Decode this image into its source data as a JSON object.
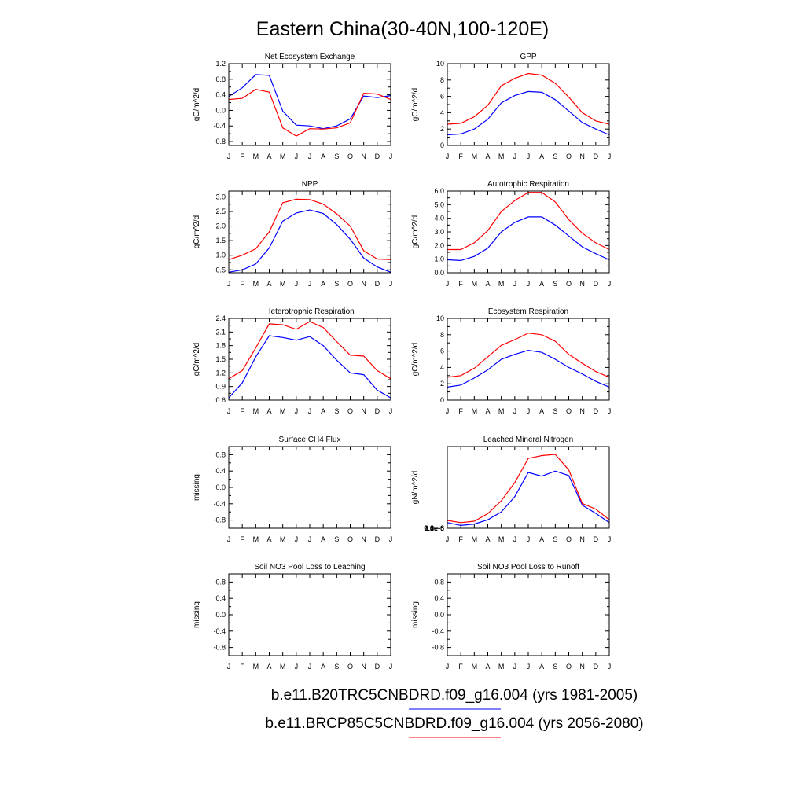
{
  "figure_title": "Eastern China(30-40N,100-120E)",
  "colors": {
    "series1": "#0000ff",
    "series2": "#ff0000",
    "axis": "#000000"
  },
  "chart_data": [
    {
      "type": "line",
      "title": "Net Ecosystem Exchange",
      "ylabel": "gC/m^2/d",
      "x": [
        "J",
        "F",
        "M",
        "A",
        "M",
        "J",
        "J",
        "A",
        "S",
        "O",
        "N",
        "D",
        "J"
      ],
      "yticks": [
        "1.2",
        "0.8",
        "0.4",
        "0.0",
        "-0.4",
        "-0.8"
      ],
      "ylim": [
        -0.9,
        1.2
      ],
      "series": [
        {
          "values": [
            0.36,
            0.58,
            0.92,
            0.9,
            -0.02,
            -0.38,
            -0.4,
            -0.47,
            -0.4,
            -0.22,
            0.37,
            0.33,
            0.38
          ]
        },
        {
          "values": [
            0.28,
            0.31,
            0.54,
            0.47,
            -0.45,
            -0.66,
            -0.47,
            -0.48,
            -0.45,
            -0.32,
            0.44,
            0.42,
            0.28
          ]
        }
      ]
    },
    {
      "type": "line",
      "title": "GPP",
      "ylabel": "gC/m^2/d",
      "x": [
        "J",
        "F",
        "M",
        "A",
        "M",
        "J",
        "J",
        "A",
        "S",
        "O",
        "N",
        "D",
        "J"
      ],
      "yticks": [
        "10",
        "8",
        "6",
        "4",
        "2",
        "0"
      ],
      "ylim": [
        0,
        10
      ],
      "series": [
        {
          "values": [
            1.3,
            1.4,
            2.0,
            3.2,
            5.2,
            6.1,
            6.6,
            6.5,
            5.6,
            4.2,
            2.8,
            2.0,
            1.3
          ]
        },
        {
          "values": [
            2.6,
            2.7,
            3.5,
            4.9,
            7.3,
            8.2,
            8.8,
            8.6,
            7.6,
            5.9,
            4.0,
            3.0,
            2.6
          ]
        }
      ]
    },
    {
      "type": "line",
      "title": "NPP",
      "ylabel": "gC/m^2/d",
      "x": [
        "J",
        "F",
        "M",
        "A",
        "M",
        "J",
        "J",
        "A",
        "S",
        "O",
        "N",
        "D",
        "J"
      ],
      "yticks": [
        "3.0",
        "2.5",
        "2.0",
        "1.5",
        "1.0",
        "0.5"
      ],
      "ylim": [
        0.4,
        3.2
      ],
      "series": [
        {
          "values": [
            0.42,
            0.5,
            0.7,
            1.25,
            2.17,
            2.45,
            2.55,
            2.43,
            2.05,
            1.55,
            0.9,
            0.6,
            0.42
          ]
        },
        {
          "values": [
            0.85,
            1.0,
            1.22,
            1.8,
            2.8,
            2.92,
            2.91,
            2.75,
            2.42,
            2.0,
            1.15,
            0.87,
            0.85
          ]
        }
      ]
    },
    {
      "type": "line",
      "title": "Autotrophic Respiration",
      "ylabel": "gC/m^2/d",
      "x": [
        "J",
        "F",
        "M",
        "A",
        "M",
        "J",
        "J",
        "A",
        "S",
        "O",
        "N",
        "D",
        "J"
      ],
      "yticks": [
        "6.0",
        "5.0",
        "4.0",
        "3.0",
        "2.0",
        "1.0",
        "0.0"
      ],
      "ylim": [
        0,
        6.0
      ],
      "series": [
        {
          "values": [
            0.95,
            0.9,
            1.2,
            1.8,
            3.0,
            3.7,
            4.1,
            4.1,
            3.5,
            2.7,
            1.9,
            1.4,
            0.95
          ]
        },
        {
          "values": [
            1.7,
            1.7,
            2.2,
            3.1,
            4.5,
            5.3,
            5.9,
            5.9,
            5.2,
            3.9,
            2.9,
            2.2,
            1.7
          ]
        }
      ]
    },
    {
      "type": "line",
      "title": "Heterotrophic Respiration",
      "ylabel": "gC/m^2/d",
      "x": [
        "J",
        "F",
        "M",
        "A",
        "M",
        "J",
        "J",
        "A",
        "S",
        "O",
        "N",
        "D",
        "J"
      ],
      "yticks": [
        "2.4",
        "2.1",
        "1.8",
        "1.5",
        "1.2",
        "0.9",
        "0.6"
      ],
      "ylim": [
        0.6,
        2.4
      ],
      "series": [
        {
          "values": [
            0.65,
            0.98,
            1.55,
            2.02,
            1.98,
            1.92,
            2.0,
            1.8,
            1.48,
            1.2,
            1.16,
            0.82,
            0.65
          ]
        },
        {
          "values": [
            1.07,
            1.25,
            1.75,
            2.28,
            2.26,
            2.16,
            2.33,
            2.2,
            1.89,
            1.59,
            1.57,
            1.25,
            1.07
          ]
        }
      ]
    },
    {
      "type": "line",
      "title": "Ecosystem Respiration",
      "ylabel": "gC/m^2/d",
      "x": [
        "J",
        "F",
        "M",
        "A",
        "M",
        "J",
        "J",
        "A",
        "S",
        "O",
        "N",
        "D",
        "J"
      ],
      "yticks": [
        "10",
        "8",
        "6",
        "4",
        "2",
        "0"
      ],
      "ylim": [
        0,
        10
      ],
      "series": [
        {
          "values": [
            1.6,
            1.85,
            2.7,
            3.7,
            5.0,
            5.6,
            6.1,
            5.85,
            5.0,
            4.0,
            3.2,
            2.3,
            1.6
          ]
        },
        {
          "values": [
            2.8,
            3.0,
            3.9,
            5.3,
            6.7,
            7.4,
            8.2,
            8.0,
            7.2,
            5.6,
            4.5,
            3.5,
            2.8
          ]
        }
      ]
    },
    {
      "type": "line",
      "title": "Surface CH4 Flux",
      "ylabel": "missing",
      "x": [
        "J",
        "F",
        "M",
        "A",
        "M",
        "J",
        "J",
        "A",
        "S",
        "O",
        "N",
        "D",
        "J"
      ],
      "yticks": [
        "0.8",
        "0.4",
        "0.0",
        "-0.4",
        "-0.8"
      ],
      "ylim": [
        -1.0,
        1.0
      ],
      "series": []
    },
    {
      "type": "line",
      "title": "Leached Mineral Nitrogen",
      "ylabel": "gN/m^2/d",
      "x": [
        "J",
        "F",
        "M",
        "A",
        "M",
        "J",
        "J",
        "A",
        "S",
        "O",
        "N",
        "D",
        "J"
      ],
      "yticks": [
        "2.8e-6",
        "2.4e-6",
        "2.0e-6",
        "1.6e-6",
        "1.2e-6",
        "0.8e-6",
        "0.4e-6",
        "0.0e-6"
      ],
      "ylim": [
        0,
        2.9
      ],
      "series": [
        {
          "values": [
            0.2,
            0.1,
            0.15,
            0.3,
            0.58,
            1.12,
            1.98,
            1.85,
            2.03,
            1.87,
            0.82,
            0.53,
            0.2
          ]
        },
        {
          "values": [
            0.28,
            0.2,
            0.25,
            0.52,
            0.98,
            1.62,
            2.48,
            2.58,
            2.62,
            2.07,
            0.88,
            0.68,
            0.3
          ]
        }
      ]
    },
    {
      "type": "line",
      "title": "Soil NO3 Pool Loss to Leaching",
      "ylabel": "missing",
      "x": [
        "J",
        "F",
        "M",
        "A",
        "M",
        "J",
        "J",
        "A",
        "S",
        "O",
        "N",
        "D",
        "J"
      ],
      "yticks": [
        "0.8",
        "0.4",
        "0.0",
        "-0.4",
        "-0.8"
      ],
      "ylim": [
        -1.0,
        1.0
      ],
      "series": []
    },
    {
      "type": "line",
      "title": "Soil NO3 Pool Loss to Runoff",
      "ylabel": "missing",
      "x": [
        "J",
        "F",
        "M",
        "A",
        "M",
        "J",
        "J",
        "A",
        "S",
        "O",
        "N",
        "D",
        "J"
      ],
      "yticks": [
        "0.8",
        "0.4",
        "0.0",
        "-0.4",
        "-0.8"
      ],
      "ylim": [
        -1.0,
        1.0
      ],
      "series": []
    }
  ],
  "legend": [
    {
      "label": "b.e11.B20TRC5CNBDRD.f09_g16.004 (yrs 1981-2005)",
      "color": "#0000ff"
    },
    {
      "label": "b.e11.BRCP85C5CNBDRD.f09_g16.004 (yrs 2056-2080)",
      "color": "#ff0000"
    }
  ]
}
